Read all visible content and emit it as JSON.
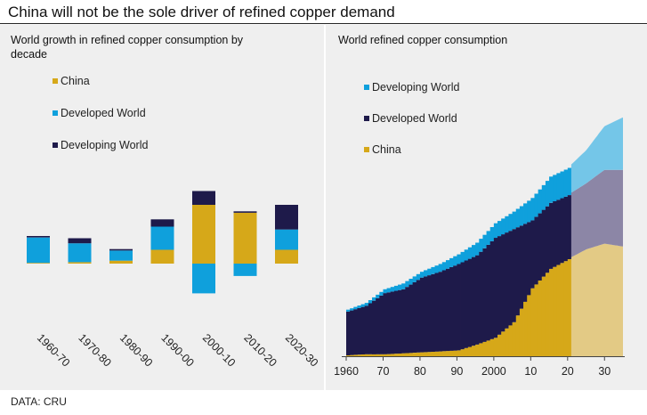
{
  "header": {
    "title": "China will not be the sole driver of refined copper demand"
  },
  "source": "DATA: CRU",
  "colors": {
    "china": "#d6a819",
    "developed": "#0fa0dc",
    "developing": "#1e1a4a"
  },
  "chart_data": [
    {
      "type": "bar",
      "stacked": true,
      "title": "World growth in refined copper consumption by decade",
      "categories": [
        "1960-70",
        "1970-80",
        "1980-90",
        "1990-00",
        "2000-10",
        "2010-20",
        "2020-30"
      ],
      "series": [
        {
          "name": "China",
          "values": [
            0.1,
            0.2,
            0.4,
            1.9,
            8.1,
            7.0,
            1.9
          ]
        },
        {
          "name": "Developed World",
          "values": [
            3.5,
            2.6,
            1.4,
            3.2,
            -4.1,
            -1.7,
            2.8
          ]
        },
        {
          "name": "Developing World",
          "values": [
            0.2,
            0.7,
            0.2,
            1.0,
            1.9,
            0.2,
            3.4
          ]
        }
      ],
      "legend_order": [
        "China",
        "Developed World",
        "Developing World"
      ],
      "legend_position": "top-left",
      "yaxis": "hidden",
      "grid": false
    },
    {
      "type": "area",
      "stacked": true,
      "title": "World refined copper consumption",
      "x_ticks": [
        "1960",
        "70",
        "80",
        "90",
        "2000",
        "10",
        "20",
        "30"
      ],
      "x_tick_values": [
        1960,
        1970,
        1980,
        1990,
        2000,
        2010,
        2020,
        2030
      ],
      "xlim": [
        1960,
        2035
      ],
      "forecast_from": 2021,
      "legend_order": [
        "Developing World",
        "Developed World",
        "China"
      ],
      "legend_position": "top-left",
      "x": [
        1960,
        1965,
        1970,
        1975,
        1980,
        1985,
        1990,
        1995,
        2000,
        2005,
        2010,
        2015,
        2020,
        2025,
        2030,
        2035
      ],
      "series": [
        {
          "name": "China",
          "values": [
            0.1,
            0.2,
            0.2,
            0.3,
            0.4,
            0.5,
            0.6,
            1.2,
            1.9,
            3.5,
            7.0,
            9.0,
            10.0,
            11.0,
            11.6,
            11.3
          ]
        },
        {
          "name": "Developed World",
          "values": [
            4.5,
            5.0,
            6.3,
            6.6,
            7.7,
            8.2,
            8.9,
            9.2,
            10.3,
            9.6,
            7.0,
            6.8,
            6.6,
            6.8,
            7.6,
            7.9
          ]
        },
        {
          "name": "Developing World",
          "values": [
            0.2,
            0.3,
            0.4,
            0.6,
            0.6,
            0.8,
            1.0,
            1.3,
            1.5,
            1.8,
            2.3,
            2.7,
            2.8,
            3.4,
            4.5,
            5.4
          ]
        }
      ]
    }
  ]
}
